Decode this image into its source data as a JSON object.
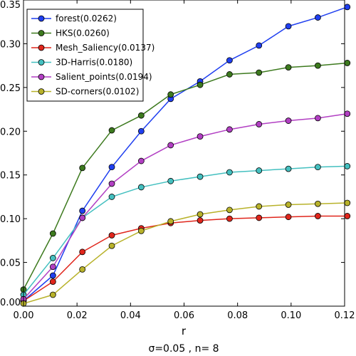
{
  "chart_data": {
    "type": "line",
    "title": "",
    "xlabel": "r",
    "ylabel": "",
    "caption": "σ=0.05 , n= 8",
    "xlim": [
      0.0,
      0.12
    ],
    "ylim": [
      0.0,
      0.35
    ],
    "xticks": [
      "0.00",
      "0.02",
      "0.04",
      "0.06",
      "0.08",
      "0.10",
      "0.12"
    ],
    "yticks": [
      "0.00",
      "0.05",
      "0.10",
      "0.15",
      "0.20",
      "0.25",
      "0.30",
      "0.35"
    ],
    "grid": false,
    "legend_position": "top-left",
    "x": [
      0.0,
      0.011,
      0.022,
      0.033,
      0.044,
      0.055,
      0.066,
      0.077,
      0.088,
      0.099,
      0.11,
      0.121
    ],
    "series": [
      {
        "name": "forest(0.0262)",
        "color": "#1f3ff0",
        "values": [
          0.006,
          0.035,
          0.109,
          0.159,
          0.2,
          0.237,
          0.257,
          0.281,
          0.298,
          0.32,
          0.33,
          0.342
        ]
      },
      {
        "name": "HKS(0.0260)",
        "color": "#3d7a1e",
        "values": [
          0.019,
          0.083,
          0.158,
          0.201,
          0.218,
          0.242,
          0.253,
          0.265,
          0.267,
          0.273,
          0.275,
          0.278
        ]
      },
      {
        "name": "Mesh_Saliency(0.0137)",
        "color": "#e0261c",
        "values": [
          0.006,
          0.028,
          0.062,
          0.081,
          0.089,
          0.095,
          0.098,
          0.1,
          0.101,
          0.102,
          0.103,
          0.103
        ]
      },
      {
        "name": "3D-Harris(0.0180)",
        "color": "#44c0c0",
        "values": [
          0.013,
          0.055,
          0.101,
          0.125,
          0.136,
          0.143,
          0.148,
          0.153,
          0.155,
          0.157,
          0.159,
          0.16
        ]
      },
      {
        "name": "Salient_points(0.0194)",
        "color": "#b23fc3",
        "values": [
          0.008,
          0.045,
          0.101,
          0.14,
          0.166,
          0.184,
          0.194,
          0.202,
          0.208,
          0.212,
          0.215,
          0.22
        ]
      },
      {
        "name": "SD-corners(0.0102)",
        "color": "#b8b22a",
        "values": [
          0.003,
          0.013,
          0.042,
          0.069,
          0.086,
          0.097,
          0.105,
          0.11,
          0.114,
          0.116,
          0.117,
          0.118
        ]
      }
    ]
  }
}
